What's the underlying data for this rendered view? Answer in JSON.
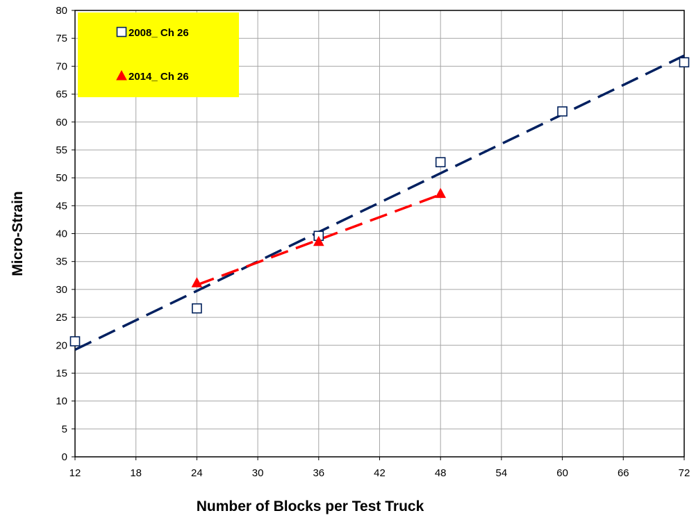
{
  "chart_data": {
    "type": "scatter",
    "title": "",
    "xlabel": "Number of Blocks per Test Truck",
    "ylabel": "Micro-Strain",
    "xlim": [
      12,
      72
    ],
    "ylim": [
      0,
      80
    ],
    "xticks": [
      12,
      18,
      24,
      30,
      36,
      42,
      48,
      54,
      60,
      66,
      72
    ],
    "yticks": [
      0,
      5,
      10,
      15,
      20,
      25,
      30,
      35,
      40,
      45,
      50,
      55,
      60,
      65,
      70,
      75,
      80
    ],
    "grid": true,
    "legend_position": "top-left",
    "legend_background": "#ffff00",
    "series": [
      {
        "name": "2008_ Ch 26",
        "marker": "open-square",
        "color": "#00205b",
        "x": [
          12,
          24,
          36,
          48,
          60,
          72
        ],
        "y": [
          20.7,
          26.6,
          39.6,
          52.8,
          61.9,
          70.7
        ],
        "trendline": {
          "style": "dashed",
          "color": "#002060",
          "x": [
            12,
            72
          ],
          "y": [
            19.2,
            71.9
          ]
        }
      },
      {
        "name": "2014_ Ch 26",
        "marker": "filled-triangle",
        "color": "#ff0000",
        "x": [
          24,
          36,
          48
        ],
        "y": [
          31.2,
          38.6,
          47.2
        ],
        "trendline": {
          "style": "dashed",
          "color": "#ff0000",
          "x": [
            24,
            48
          ],
          "y": [
            30.8,
            47.0
          ]
        }
      }
    ]
  }
}
